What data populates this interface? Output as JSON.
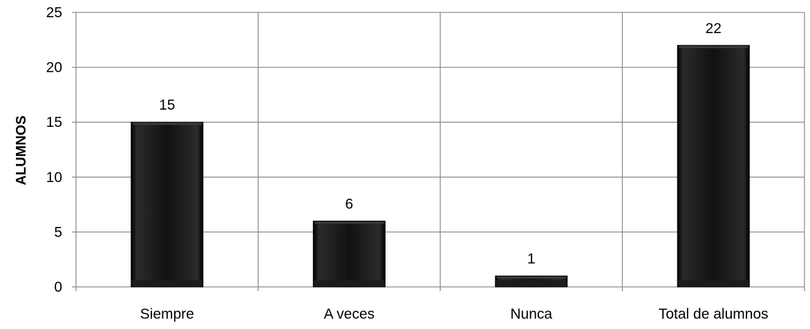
{
  "chart_data": {
    "type": "bar",
    "categories": [
      "Siempre",
      "A veces",
      "Nunca",
      "Total de alumnos"
    ],
    "values": [
      15,
      6,
      1,
      22
    ],
    "data_labels": [
      "15",
      "6",
      "1",
      "22"
    ],
    "title": "",
    "xlabel": "",
    "ylabel": "ALUMNOS",
    "ylim": [
      0,
      25
    ],
    "yticks": [
      0,
      5,
      10,
      15,
      20,
      25
    ],
    "ytick_labels": [
      "0",
      "5",
      "10",
      "15",
      "20",
      "25"
    ],
    "grid": "both",
    "legend": "none",
    "colors": {
      "bar": "#000000",
      "bar_highlight": "#3a3a3a",
      "grid": "#8c8c8c",
      "text": "#000000"
    }
  }
}
